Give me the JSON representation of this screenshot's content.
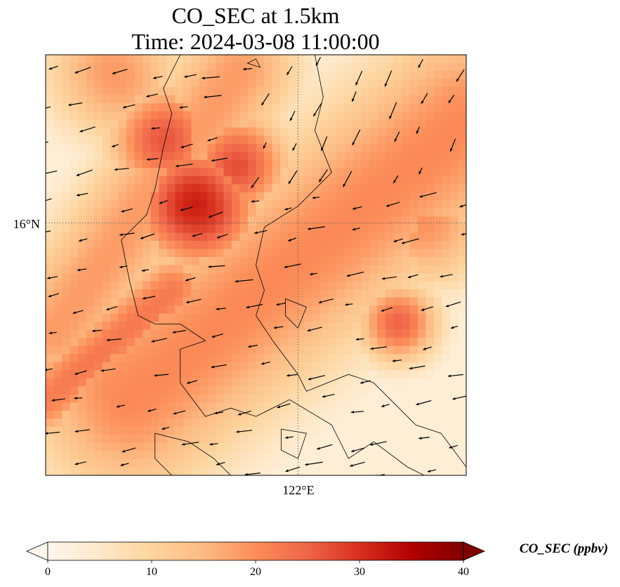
{
  "chart_data": {
    "type": "heatmap",
    "title": "CO_SEC at 1.5km",
    "subtitle": "Time: 2024-03-08 11:00:00",
    "xtick_labels": [
      "122°E"
    ],
    "ytick_labels": [
      "16°N"
    ],
    "x_ticks_deg": [
      122
    ],
    "y_ticks_deg": [
      16
    ],
    "lon_range": [
      119.0,
      124.0
    ],
    "lat_range": [
      13.0,
      18.0
    ],
    "gridlines": "dotted at tick positions",
    "colormap": "OrRd",
    "colormap_stops": [
      "#fff7ec",
      "#fee8c8",
      "#fdd49e",
      "#fdbb84",
      "#fc8d59",
      "#ef6548",
      "#d7301f",
      "#b30000",
      "#7f0000"
    ],
    "colorbar": {
      "label": "CO_SEC (ppbv)",
      "range": [
        0,
        40
      ],
      "ticks": [
        "0",
        "10",
        "20",
        "30",
        "40"
      ],
      "extend": "both"
    },
    "field_features": [
      {
        "kind": "band",
        "from": [
          119.1,
          14.7
        ],
        "to": [
          121.3,
          17.8
        ],
        "value": 18,
        "width": 0.55
      },
      {
        "kind": "band",
        "from": [
          120.0,
          13.9
        ],
        "to": [
          124.0,
          17.2
        ],
        "value": 20,
        "width": 0.9
      },
      {
        "kind": "band",
        "from": [
          119.0,
          13.9
        ],
        "to": [
          120.5,
          15.2
        ],
        "value": 20,
        "width": 0.35
      },
      {
        "kind": "blob",
        "center": [
          120.8,
          16.2
        ],
        "value": 30,
        "radius": 0.55
      },
      {
        "kind": "blob",
        "center": [
          120.4,
          17.0
        ],
        "value": 24,
        "radius": 0.5
      },
      {
        "kind": "blob",
        "center": [
          121.3,
          16.7
        ],
        "value": 25,
        "radius": 0.45
      },
      {
        "kind": "blob",
        "center": [
          123.2,
          14.8
        ],
        "value": 24,
        "radius": 0.35
      },
      {
        "kind": "blob",
        "center": [
          119.8,
          17.8
        ],
        "value": 18,
        "radius": 0.6
      },
      {
        "kind": "blob",
        "center": [
          123.5,
          16.0
        ],
        "value": 17,
        "radius": 0.6
      }
    ],
    "wind_direction": "predominantly from the northeast toward the southwest",
    "coastline_color": "#000000"
  }
}
